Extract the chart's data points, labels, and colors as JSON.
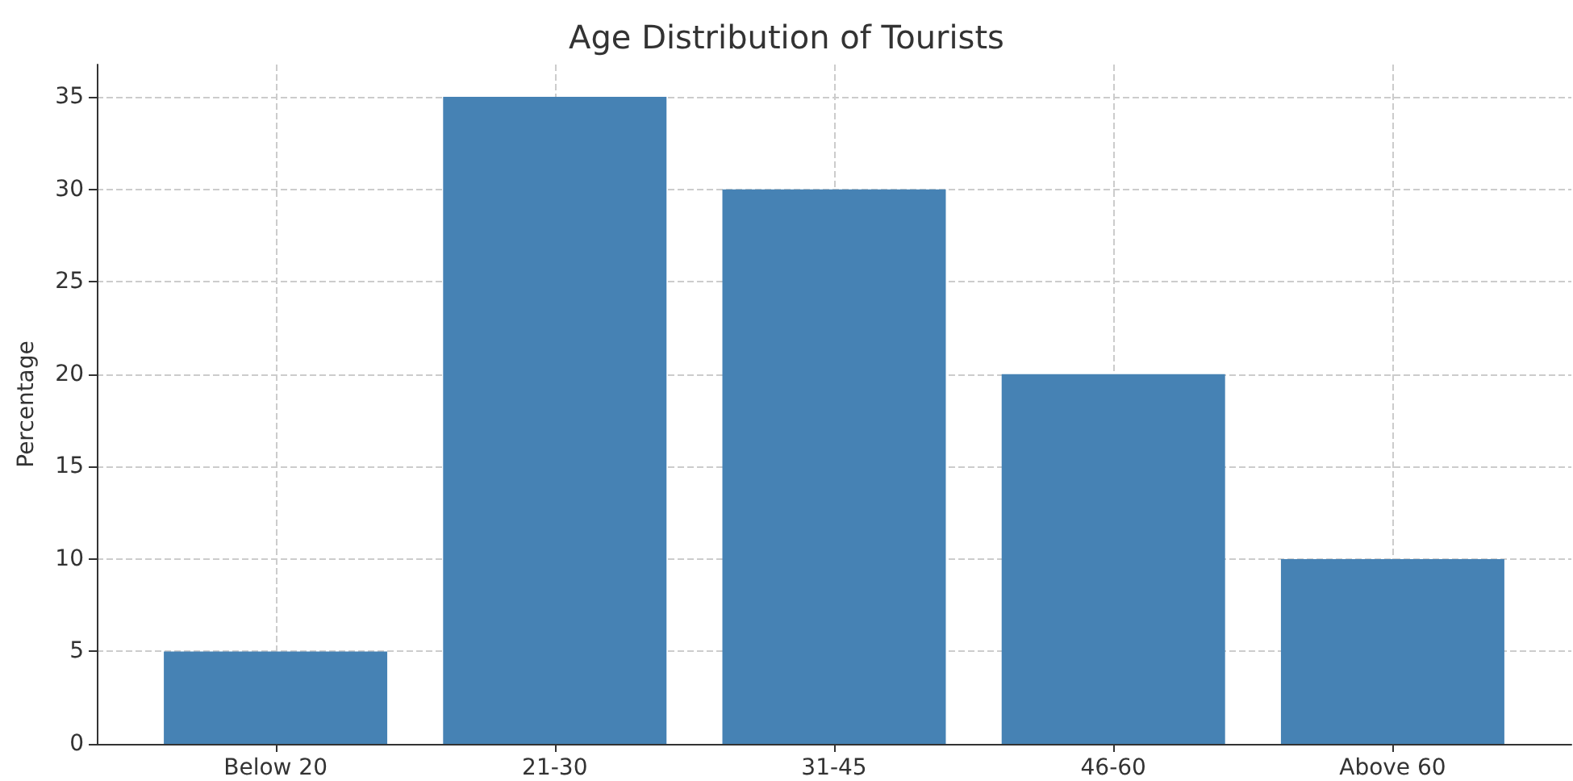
{
  "chart_data": {
    "type": "bar",
    "title": "Age Distribution of Tourists",
    "ylabel": "Percentage",
    "categories": [
      "Below 20",
      "21-30",
      "31-45",
      "46-60",
      "Above 60"
    ],
    "values": [
      5,
      35,
      30,
      20,
      10
    ],
    "color": "#4682b4",
    "ylim": [
      0,
      36.75
    ],
    "yticks": [
      0,
      5,
      10,
      15,
      20,
      25,
      30,
      35
    ],
    "grid": true
  }
}
